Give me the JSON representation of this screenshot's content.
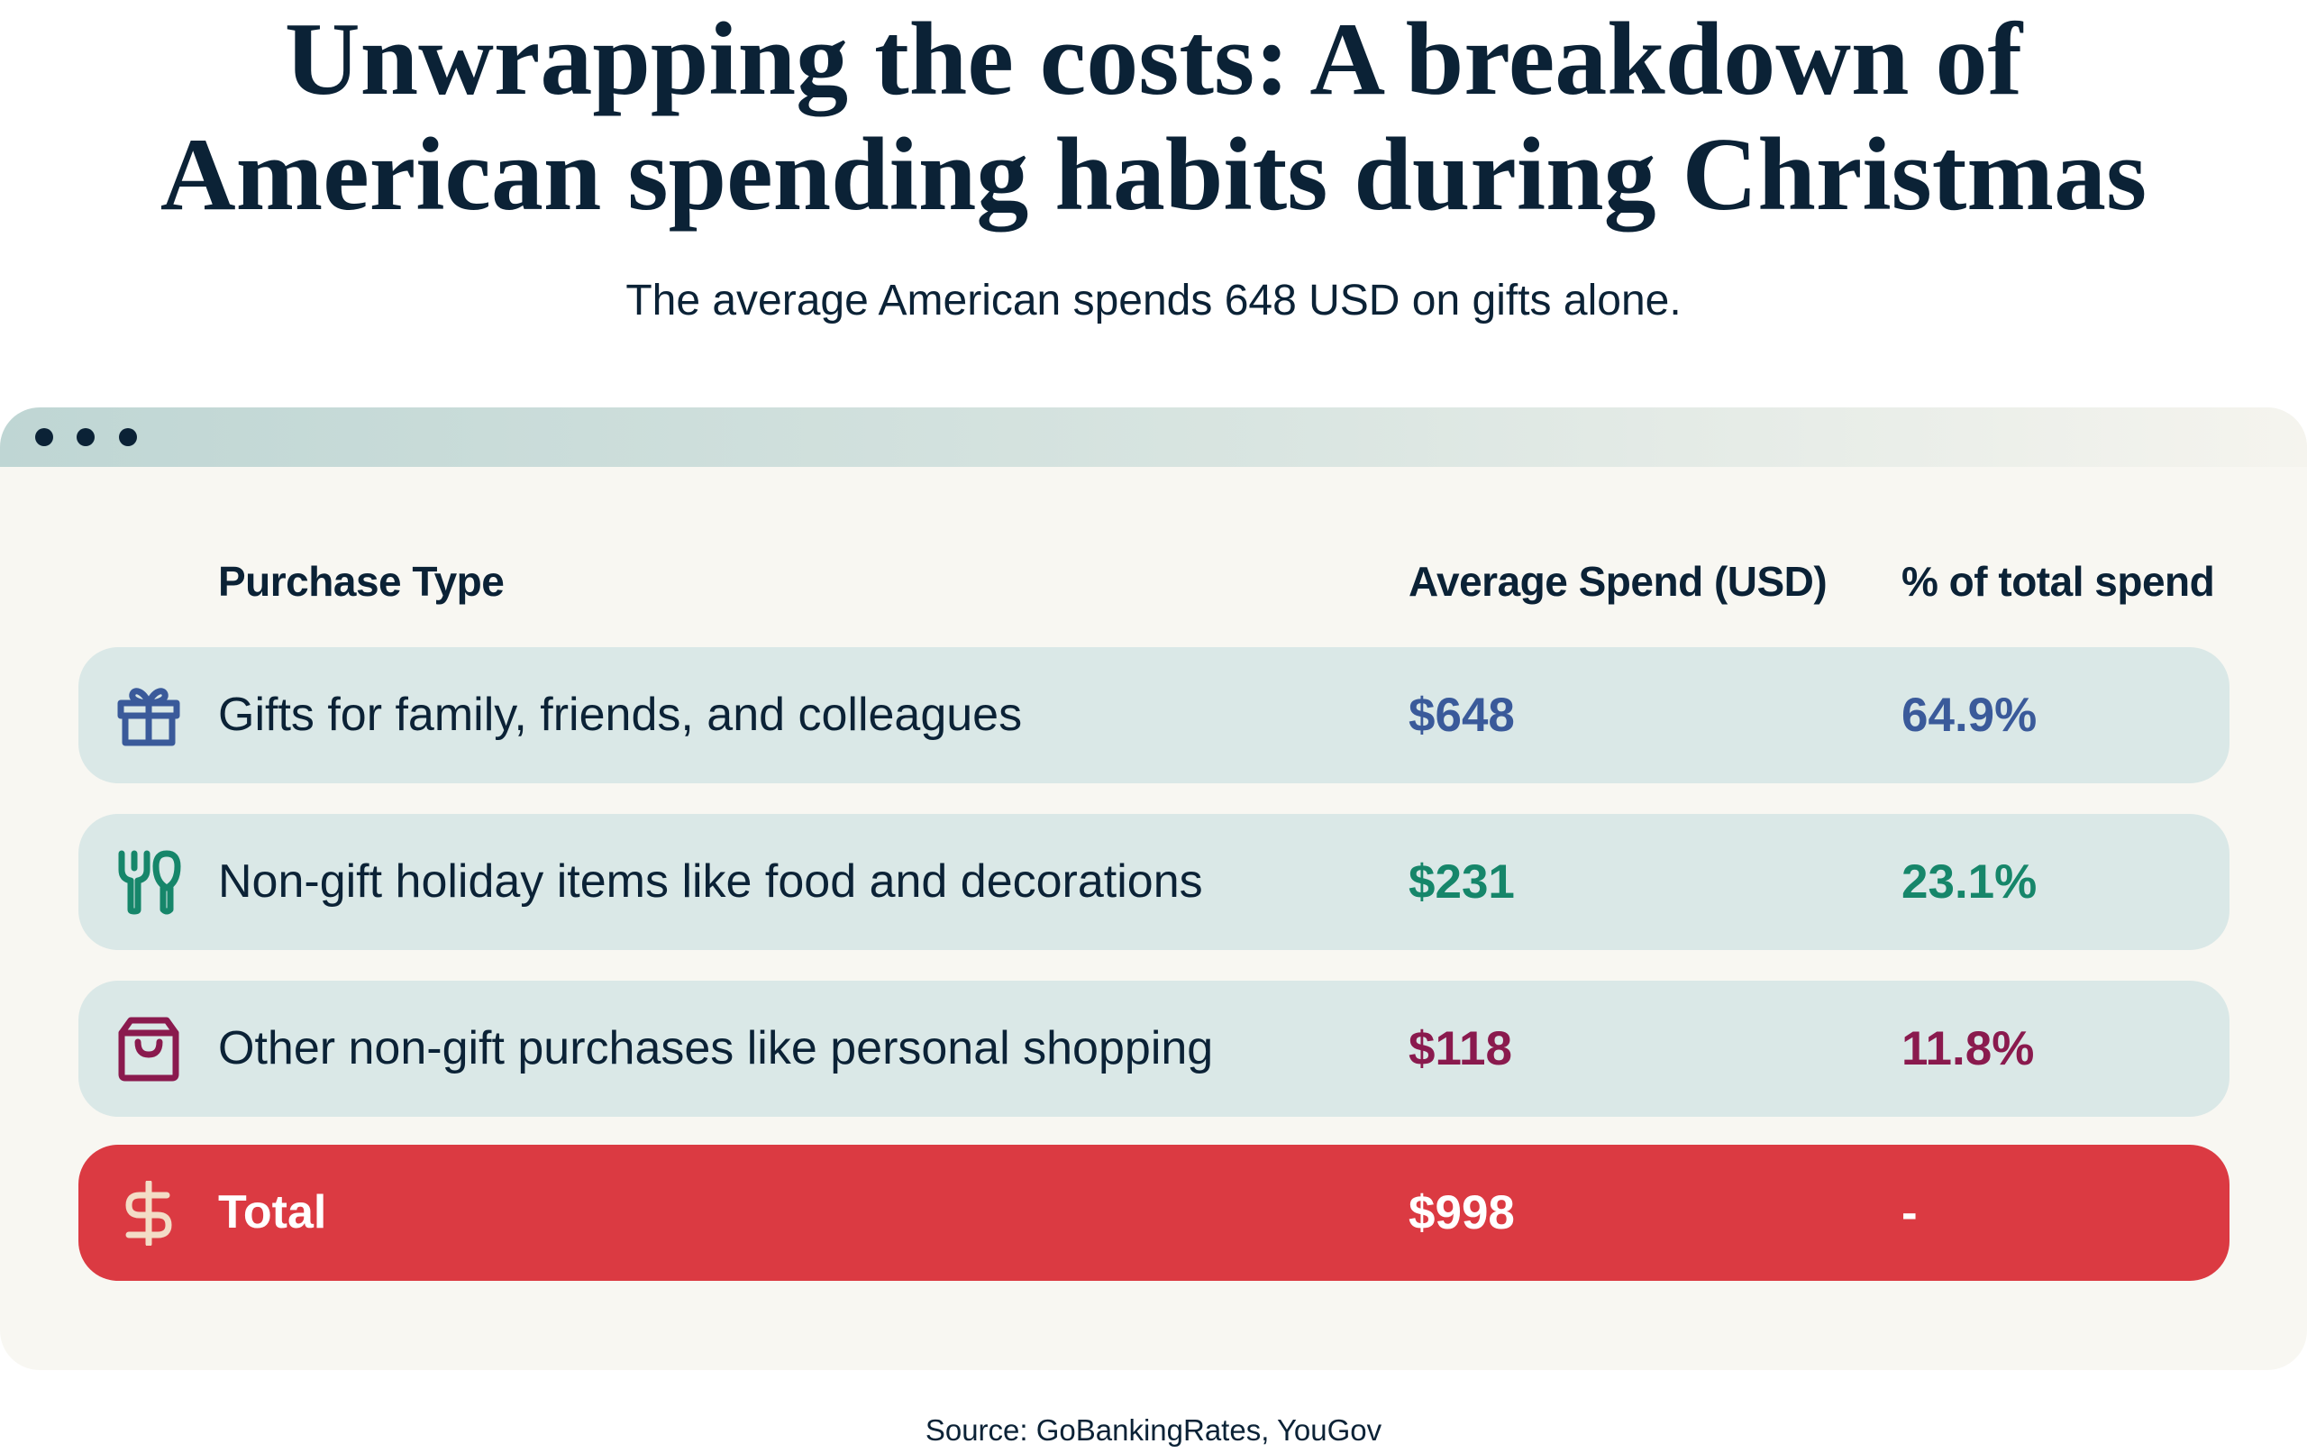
{
  "title": {
    "line1": "Unwrapping the costs: A breakdown of",
    "line2": "American spending habits during Christmas"
  },
  "subtitle": "The average American spends 648 USD on gifts alone.",
  "table": {
    "columns": [
      "Purchase Type",
      "Average Spend (USD)",
      "% of total spend"
    ],
    "rows": [
      {
        "icon": "gift-icon",
        "label": "Gifts for family, friends, and colleagues",
        "spend": "$648",
        "percent": "64.9%",
        "color": "#3a5a9a"
      },
      {
        "icon": "fork-spoon-icon",
        "label": "Non-gift holiday items like food and decorations",
        "spend": "$231",
        "percent": "23.1%",
        "color": "#16866a"
      },
      {
        "icon": "shopping-bag-icon",
        "label": "Other non-gift purchases like personal shopping",
        "spend": "$118",
        "percent": "11.8%",
        "color": "#8a1a4e"
      }
    ],
    "total": {
      "icon": "dollar-icon",
      "label": "Total",
      "spend": "$998",
      "percent": "-",
      "color": "#db3a42"
    }
  },
  "source": "Source: GoBankingRates, YouGov"
}
